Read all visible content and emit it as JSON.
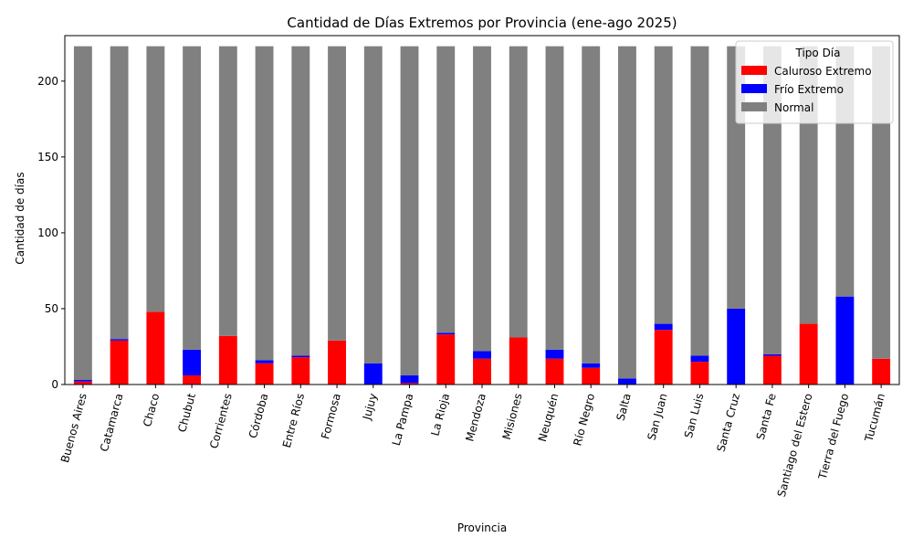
{
  "chart_data": {
    "type": "bar",
    "stacked": true,
    "title": "Cantidad de Días Extremos por Provincia (ene-ago 2025)",
    "xlabel": "Provincia",
    "ylabel": "Cantidad de días",
    "ylim": [
      0,
      230
    ],
    "yticks": [
      0,
      50,
      100,
      150,
      200
    ],
    "grid": false,
    "legend": {
      "title": "Tipo Día",
      "placement": "top-right"
    },
    "categories": [
      "Buenos Aires",
      "Catamarca",
      "Chaco",
      "Chubut",
      "Corrientes",
      "Córdoba",
      "Entre Ríos",
      "Formosa",
      "Jujuy",
      "La Pampa",
      "La Rioja",
      "Mendoza",
      "Misiones",
      "Neuquén",
      "Río Negro",
      "Salta",
      "San Juan",
      "San Luis",
      "Santa Cruz",
      "Santa Fe",
      "Santiago del Estero",
      "Tierra del Fuego",
      "Tucumán"
    ],
    "series": [
      {
        "name": "Caluroso Extremo",
        "color": "#ff0000",
        "values": [
          2,
          29,
          48,
          6,
          32,
          14,
          18,
          29,
          0,
          1,
          33,
          17,
          31,
          17,
          11,
          0,
          36,
          15,
          0,
          19,
          40,
          0,
          17
        ]
      },
      {
        "name": "Frío Extremo",
        "color": "#0000ff",
        "values": [
          1,
          1,
          0,
          17,
          0,
          2,
          1,
          0,
          14,
          5,
          1,
          5,
          0,
          6,
          3,
          4,
          4,
          4,
          50,
          1,
          0,
          58,
          0
        ]
      },
      {
        "name": "Normal",
        "color": "#808080",
        "values": [
          220,
          193,
          175,
          200,
          191,
          207,
          204,
          194,
          209,
          217,
          189,
          201,
          192,
          200,
          209,
          219,
          183,
          204,
          173,
          203,
          183,
          165,
          206
        ]
      }
    ]
  }
}
